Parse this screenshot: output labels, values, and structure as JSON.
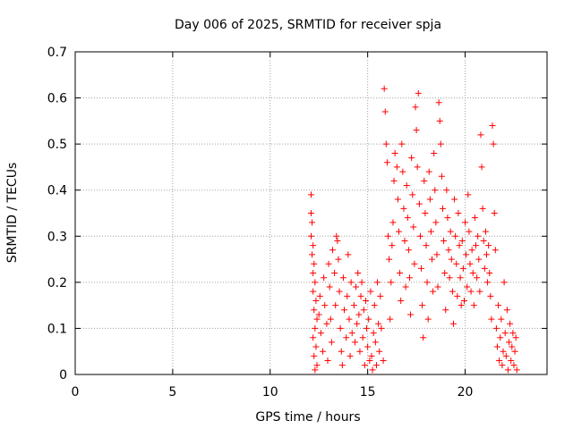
{
  "chart_data": {
    "type": "scatter",
    "title": "Day 006 of 2025, SRMTID for receiver spja",
    "xlabel": "GPS time / hours",
    "ylabel": "SRMTID / TECUs",
    "xlim": [
      0,
      24.2
    ],
    "ylim": [
      0,
      0.7
    ],
    "xticks": [
      0,
      5,
      10,
      15,
      20
    ],
    "xtick_labels": [
      "0",
      "5",
      "10",
      "15",
      "20"
    ],
    "yticks": [
      0,
      0.1,
      0.2,
      0.3,
      0.4,
      0.5,
      0.6,
      0.7
    ],
    "ytick_labels": [
      "0",
      "0.1",
      "0.2",
      "0.3",
      "0.4",
      "0.5",
      "0.6",
      "0.7"
    ],
    "grid": true,
    "marker": "+",
    "color": "#ff0000",
    "series": [
      {
        "name": "SRMTID",
        "points": [
          [
            12.1,
            0.39
          ],
          [
            12.1,
            0.35
          ],
          [
            12.15,
            0.33
          ],
          [
            12.1,
            0.3
          ],
          [
            12.2,
            0.28
          ],
          [
            12.15,
            0.26
          ],
          [
            12.25,
            0.24
          ],
          [
            12.2,
            0.22
          ],
          [
            12.3,
            0.2
          ],
          [
            12.2,
            0.18
          ],
          [
            12.35,
            0.16
          ],
          [
            12.25,
            0.14
          ],
          [
            12.4,
            0.12
          ],
          [
            12.3,
            0.1
          ],
          [
            12.2,
            0.08
          ],
          [
            12.35,
            0.06
          ],
          [
            12.25,
            0.04
          ],
          [
            12.4,
            0.02
          ],
          [
            12.3,
            0.01
          ],
          [
            12.5,
            0.13
          ],
          [
            12.55,
            0.17
          ],
          [
            12.6,
            0.09
          ],
          [
            12.7,
            0.05
          ],
          [
            12.75,
            0.21
          ],
          [
            12.8,
            0.15
          ],
          [
            12.9,
            0.11
          ],
          [
            12.95,
            0.03
          ],
          [
            13.0,
            0.24
          ],
          [
            13.05,
            0.19
          ],
          [
            13.1,
            0.12
          ],
          [
            13.15,
            0.07
          ],
          [
            13.2,
            0.27
          ],
          [
            13.3,
            0.22
          ],
          [
            13.35,
            0.15
          ],
          [
            13.4,
            0.3
          ],
          [
            13.45,
            0.29
          ],
          [
            13.5,
            0.25
          ],
          [
            13.55,
            0.18
          ],
          [
            13.6,
            0.1
          ],
          [
            13.65,
            0.05
          ],
          [
            13.7,
            0.02
          ],
          [
            13.75,
            0.21
          ],
          [
            13.8,
            0.14
          ],
          [
            13.9,
            0.08
          ],
          [
            13.95,
            0.17
          ],
          [
            14.0,
            0.26
          ],
          [
            14.05,
            0.12
          ],
          [
            14.1,
            0.04
          ],
          [
            14.15,
            0.2
          ],
          [
            14.2,
            0.09
          ],
          [
            14.3,
            0.15
          ],
          [
            14.35,
            0.07
          ],
          [
            14.4,
            0.19
          ],
          [
            14.45,
            0.11
          ],
          [
            14.5,
            0.22
          ],
          [
            14.55,
            0.13
          ],
          [
            14.6,
            0.05
          ],
          [
            14.65,
            0.17
          ],
          [
            14.7,
            0.2
          ],
          [
            14.75,
            0.08
          ],
          [
            14.8,
            0.14
          ],
          [
            14.85,
            0.02
          ],
          [
            14.9,
            0.16
          ],
          [
            14.95,
            0.1
          ],
          [
            15.0,
            0.06
          ],
          [
            15.05,
            0.12
          ],
          [
            15.1,
            0.03
          ],
          [
            15.15,
            0.18
          ],
          [
            15.2,
            0.04
          ],
          [
            15.25,
            0.01
          ],
          [
            15.3,
            0.09
          ],
          [
            15.35,
            0.15
          ],
          [
            15.4,
            0.07
          ],
          [
            15.45,
            0.02
          ],
          [
            15.5,
            0.2
          ],
          [
            15.55,
            0.11
          ],
          [
            15.6,
            0.05
          ],
          [
            15.65,
            0.17
          ],
          [
            15.7,
            0.1
          ],
          [
            15.8,
            0.03
          ],
          [
            15.85,
            0.62
          ],
          [
            15.9,
            0.57
          ],
          [
            15.95,
            0.5
          ],
          [
            16.0,
            0.46
          ],
          [
            16.05,
            0.3
          ],
          [
            16.1,
            0.25
          ],
          [
            16.15,
            0.12
          ],
          [
            16.2,
            0.2
          ],
          [
            16.25,
            0.28
          ],
          [
            16.3,
            0.33
          ],
          [
            16.35,
            0.42
          ],
          [
            16.4,
            0.48
          ],
          [
            16.5,
            0.45
          ],
          [
            16.55,
            0.38
          ],
          [
            16.6,
            0.31
          ],
          [
            16.65,
            0.22
          ],
          [
            16.7,
            0.16
          ],
          [
            16.75,
            0.5
          ],
          [
            16.8,
            0.44
          ],
          [
            16.85,
            0.36
          ],
          [
            16.9,
            0.29
          ],
          [
            16.95,
            0.19
          ],
          [
            17.0,
            0.41
          ],
          [
            17.05,
            0.34
          ],
          [
            17.1,
            0.27
          ],
          [
            17.15,
            0.21
          ],
          [
            17.2,
            0.13
          ],
          [
            17.25,
            0.47
          ],
          [
            17.3,
            0.39
          ],
          [
            17.35,
            0.32
          ],
          [
            17.4,
            0.24
          ],
          [
            17.45,
            0.58
          ],
          [
            17.5,
            0.53
          ],
          [
            17.55,
            0.45
          ],
          [
            17.6,
            0.61
          ],
          [
            17.65,
            0.37
          ],
          [
            17.7,
            0.3
          ],
          [
            17.75,
            0.23
          ],
          [
            17.8,
            0.15
          ],
          [
            17.85,
            0.08
          ],
          [
            17.9,
            0.42
          ],
          [
            17.95,
            0.35
          ],
          [
            18.0,
            0.28
          ],
          [
            18.05,
            0.2
          ],
          [
            18.1,
            0.12
          ],
          [
            18.15,
            0.44
          ],
          [
            18.2,
            0.38
          ],
          [
            18.25,
            0.31
          ],
          [
            18.3,
            0.25
          ],
          [
            18.35,
            0.18
          ],
          [
            18.4,
            0.48
          ],
          [
            18.45,
            0.4
          ],
          [
            18.5,
            0.33
          ],
          [
            18.55,
            0.26
          ],
          [
            18.6,
            0.19
          ],
          [
            18.65,
            0.59
          ],
          [
            18.7,
            0.55
          ],
          [
            18.75,
            0.5
          ],
          [
            18.8,
            0.43
          ],
          [
            18.85,
            0.36
          ],
          [
            18.9,
            0.29
          ],
          [
            18.95,
            0.22
          ],
          [
            19.0,
            0.14
          ],
          [
            19.05,
            0.4
          ],
          [
            19.1,
            0.34
          ],
          [
            19.15,
            0.27
          ],
          [
            19.2,
            0.21
          ],
          [
            19.25,
            0.31
          ],
          [
            19.3,
            0.25
          ],
          [
            19.35,
            0.18
          ],
          [
            19.4,
            0.11
          ],
          [
            19.45,
            0.38
          ],
          [
            19.5,
            0.3
          ],
          [
            19.55,
            0.24
          ],
          [
            19.6,
            0.17
          ],
          [
            19.65,
            0.35
          ],
          [
            19.7,
            0.28
          ],
          [
            19.75,
            0.21
          ],
          [
            19.8,
            0.15
          ],
          [
            19.85,
            0.29
          ],
          [
            19.9,
            0.23
          ],
          [
            19.95,
            0.16
          ],
          [
            20.0,
            0.33
          ],
          [
            20.05,
            0.26
          ],
          [
            20.1,
            0.19
          ],
          [
            20.15,
            0.39
          ],
          [
            20.2,
            0.31
          ],
          [
            20.25,
            0.24
          ],
          [
            20.3,
            0.18
          ],
          [
            20.35,
            0.27
          ],
          [
            20.4,
            0.22
          ],
          [
            20.45,
            0.15
          ],
          [
            20.5,
            0.34
          ],
          [
            20.55,
            0.28
          ],
          [
            20.6,
            0.21
          ],
          [
            20.65,
            0.3
          ],
          [
            20.7,
            0.25
          ],
          [
            20.75,
            0.18
          ],
          [
            20.8,
            0.52
          ],
          [
            20.85,
            0.45
          ],
          [
            20.9,
            0.36
          ],
          [
            20.95,
            0.29
          ],
          [
            21.0,
            0.23
          ],
          [
            21.05,
            0.31
          ],
          [
            21.1,
            0.26
          ],
          [
            21.15,
            0.2
          ],
          [
            21.2,
            0.28
          ],
          [
            21.25,
            0.22
          ],
          [
            21.3,
            0.17
          ],
          [
            21.35,
            0.12
          ],
          [
            21.4,
            0.54
          ],
          [
            21.45,
            0.5
          ],
          [
            21.5,
            0.35
          ],
          [
            21.55,
            0.27
          ],
          [
            21.6,
            0.1
          ],
          [
            21.65,
            0.06
          ],
          [
            21.7,
            0.15
          ],
          [
            21.75,
            0.03
          ],
          [
            21.8,
            0.08
          ],
          [
            21.85,
            0.12
          ],
          [
            21.9,
            0.02
          ],
          [
            21.95,
            0.05
          ],
          [
            22.0,
            0.2
          ],
          [
            22.05,
            0.09
          ],
          [
            22.1,
            0.04
          ],
          [
            22.15,
            0.14
          ],
          [
            22.2,
            0.01
          ],
          [
            22.25,
            0.07
          ],
          [
            22.3,
            0.11
          ],
          [
            22.35,
            0.03
          ],
          [
            22.4,
            0.06
          ],
          [
            22.45,
            0.09
          ],
          [
            22.5,
            0.02
          ],
          [
            22.55,
            0.05
          ],
          [
            22.6,
            0.08
          ],
          [
            22.65,
            0.01
          ]
        ]
      }
    ]
  }
}
